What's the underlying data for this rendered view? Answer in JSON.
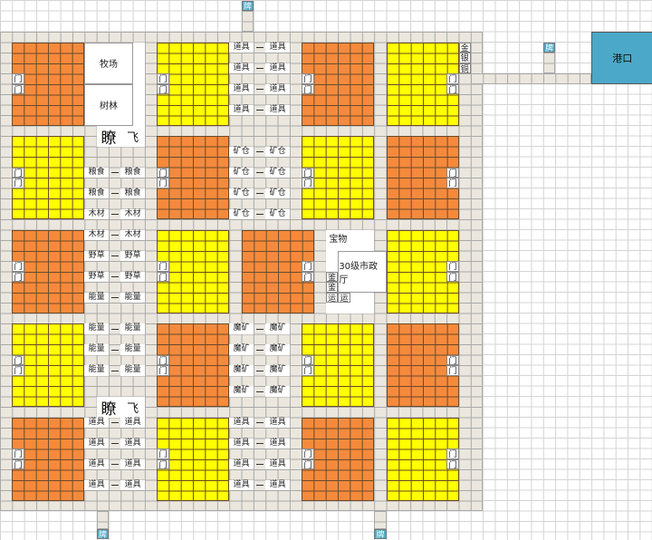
{
  "map": {
    "harbor": "港口",
    "sign": "牌",
    "door": "门",
    "pasture": "牧场",
    "forest": "树林",
    "watchtower": "瞭",
    "fly": "飞",
    "treasure": "宝物",
    "city_hall": "30级市政厅",
    "appraise": "鉴",
    "transport": "运",
    "metals": [
      "金",
      "银",
      "铜"
    ],
    "zone_labels": {
      "left_row2": [
        "粮食",
        "粮食",
        "木材"
      ],
      "left_row3": [
        "木材",
        "野草",
        "野草",
        "能量"
      ],
      "left_row4": [
        "能量",
        "能量",
        "能量"
      ],
      "left_row5": [
        "道具",
        "道具",
        "道具",
        "道具"
      ],
      "right_row1": [
        "道具",
        "道具",
        "道具",
        "道具"
      ],
      "right_row2": [
        "矿仓",
        "矿仓",
        "矿仓",
        "矿仓"
      ],
      "right_row4": [
        "魔矿",
        "魔矿",
        "魔矿",
        "魔矿"
      ],
      "right_row5": [
        "道具",
        "道具",
        "道具",
        "道具"
      ]
    }
  },
  "colors": {
    "orange_plot": "#f58a3c",
    "yellow_plot": "#ffff00",
    "road": "#ebe7de",
    "harbor": "#4ba8c8"
  }
}
